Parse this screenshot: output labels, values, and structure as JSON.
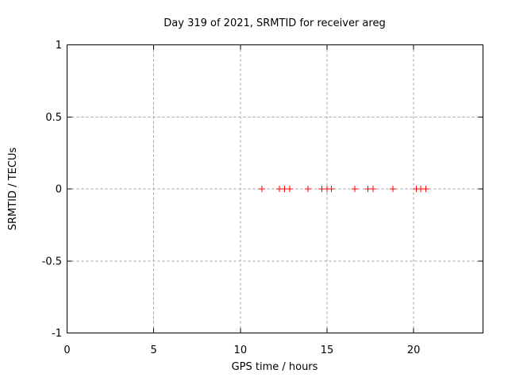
{
  "chart_data": {
    "type": "scatter",
    "title": "Day 319 of 2021, SRMTID for receiver areg",
    "xlabel": "GPS time / hours",
    "ylabel": "SRMTID / TECUs",
    "xlim": [
      0,
      24
    ],
    "ylim": [
      -1,
      1
    ],
    "xticks": [
      0,
      5,
      10,
      15,
      20
    ],
    "xtick_labels": [
      "0",
      "5",
      "10",
      "15",
      "20"
    ],
    "yticks": [
      1,
      0.5,
      0,
      -0.5,
      -1
    ],
    "ytick_labels": [
      "1",
      "0.5",
      "0",
      "-0.5",
      "-1"
    ],
    "grid": true,
    "legend_position": "none",
    "marker": "plus",
    "colors": {
      "marker": "#ff0000",
      "grid": "#a0a0a0",
      "axis": "#000000",
      "text": "#000000",
      "background": "#ffffff"
    },
    "series": [
      {
        "name": "SRMTID",
        "x": [
          11.25,
          12.25,
          12.55,
          12.85,
          13.9,
          14.7,
          15.0,
          15.25,
          16.6,
          17.35,
          17.65,
          18.8,
          20.15,
          20.4,
          20.7
        ],
        "y": [
          0,
          0,
          0,
          0,
          0,
          0,
          0,
          0,
          0,
          0,
          0,
          0,
          0,
          0,
          0
        ]
      }
    ]
  }
}
